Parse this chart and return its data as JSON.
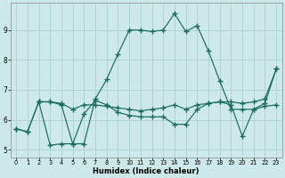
{
  "xlabel": "Humidex (Indice chaleur)",
  "bg_color": "#cce8e8",
  "line_color": "#1a6b5a",
  "grid_color": "#a8cbcb",
  "xlim": [
    -0.5,
    23.5
  ],
  "ylim": [
    4.75,
    9.9
  ],
  "xtick_vals": [
    0,
    1,
    2,
    3,
    4,
    5,
    6,
    7,
    8,
    9,
    10,
    11,
    12,
    13,
    14,
    15,
    16,
    17,
    18,
    19,
    20,
    21,
    22,
    23
  ],
  "ytick_vals": [
    5,
    6,
    7,
    8,
    9
  ],
  "line1_x": [
    0,
    1,
    2,
    3,
    4,
    5,
    6,
    7,
    8,
    9,
    10,
    11,
    12,
    13,
    14,
    15,
    16,
    17,
    18,
    19,
    20,
    21,
    22,
    23
  ],
  "line1_y": [
    5.7,
    5.6,
    6.6,
    6.6,
    6.5,
    5.2,
    5.2,
    6.7,
    7.35,
    8.2,
    9.0,
    9.0,
    8.95,
    9.0,
    9.55,
    8.95,
    9.15,
    8.3,
    7.3,
    6.35,
    6.35,
    6.35,
    6.55,
    7.7
  ],
  "line2_x": [
    2,
    3,
    4,
    5,
    6,
    7,
    8,
    9,
    10,
    11,
    12,
    13,
    14,
    15,
    16,
    17,
    18,
    19,
    20,
    21,
    22,
    23
  ],
  "line2_y": [
    6.6,
    6.6,
    6.55,
    6.35,
    6.5,
    6.5,
    6.45,
    6.4,
    6.35,
    6.3,
    6.35,
    6.4,
    6.5,
    6.35,
    6.5,
    6.55,
    6.6,
    6.6,
    6.55,
    6.6,
    6.7,
    7.7
  ],
  "line3_x": [
    0,
    1,
    2,
    3,
    4,
    5,
    6,
    7,
    8,
    9,
    10,
    11,
    12,
    13,
    14,
    15,
    16,
    17,
    18,
    19,
    20,
    21,
    22,
    23
  ],
  "line3_y": [
    5.7,
    5.6,
    6.6,
    5.15,
    5.2,
    5.2,
    6.2,
    6.65,
    6.5,
    6.25,
    6.15,
    6.1,
    6.1,
    6.1,
    5.85,
    5.85,
    6.35,
    6.55,
    6.6,
    6.5,
    5.45,
    6.35,
    6.45,
    6.5
  ]
}
